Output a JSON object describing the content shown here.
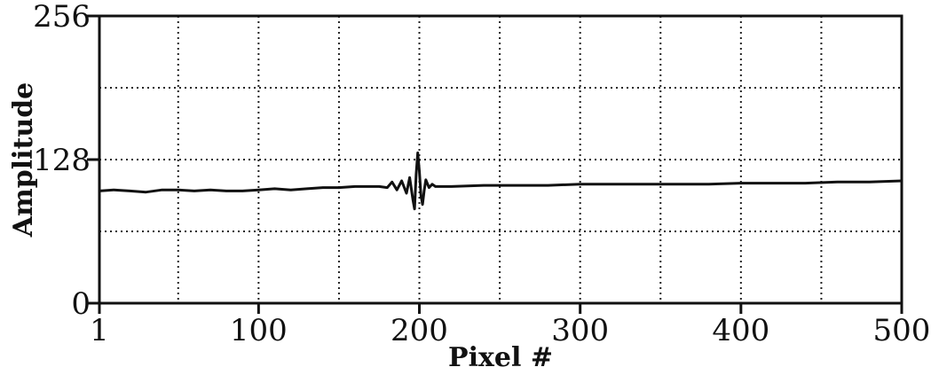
{
  "chart_data": {
    "type": "line",
    "title": "",
    "xlabel": "Pixel #",
    "ylabel": "Amplitude",
    "xlim": [
      1,
      500
    ],
    "ylim": [
      0,
      256
    ],
    "x_ticks": [
      1,
      100,
      200,
      300,
      400,
      500
    ],
    "x_tick_labels": [
      "1",
      "100",
      "200",
      "300",
      "400",
      "500"
    ],
    "y_ticks": [
      0,
      128,
      256
    ],
    "y_tick_labels": [
      "0",
      "128",
      "256"
    ],
    "grid": true,
    "grid_style": "dotted",
    "grid_x": [
      50,
      100,
      150,
      200,
      250,
      300,
      350,
      400,
      450
    ],
    "grid_y": [
      64,
      128,
      192
    ],
    "line_color": "#111111",
    "series": [
      {
        "x": [
          1,
          10,
          20,
          30,
          40,
          50,
          60,
          70,
          80,
          90,
          100,
          110,
          120,
          130,
          140,
          150,
          160,
          170,
          175,
          180,
          183,
          186,
          189,
          192,
          194,
          196,
          197,
          198,
          199,
          200,
          201,
          202,
          203,
          204,
          206,
          208,
          210,
          215,
          220,
          240,
          260,
          280,
          300,
          320,
          340,
          360,
          380,
          400,
          420,
          440,
          460,
          480,
          500
        ],
        "y": [
          100,
          101,
          100,
          99,
          101,
          101,
          100,
          101,
          100,
          100,
          101,
          102,
          101,
          102,
          103,
          103,
          104,
          104,
          104,
          103,
          108,
          101,
          109,
          98,
          112,
          92,
          84,
          115,
          134,
          118,
          96,
          88,
          100,
          110,
          103,
          106,
          104,
          104,
          104,
          105,
          105,
          105,
          106,
          106,
          106,
          106,
          106,
          107,
          107,
          107,
          108,
          108,
          109
        ]
      }
    ]
  }
}
